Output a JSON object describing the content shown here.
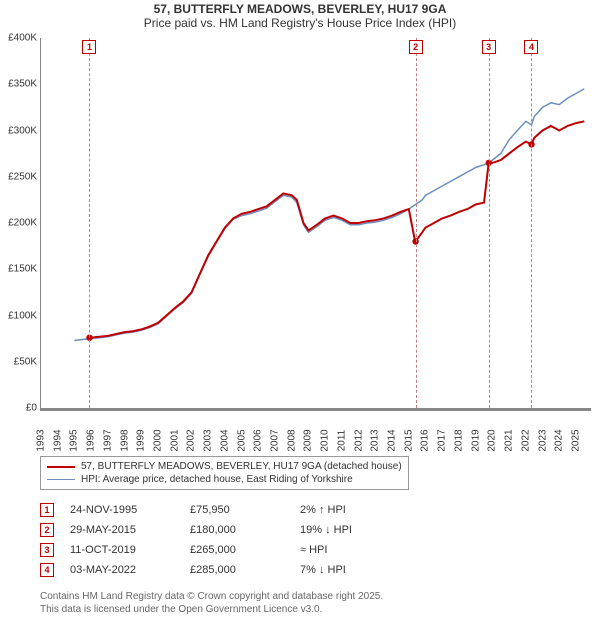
{
  "title": {
    "line1": "57, BUTTERFLY MEADOWS, BEVERLEY, HU17 9GA",
    "line2": "Price paid vs. HM Land Registry's House Price Index (HPI)",
    "fontsize": 12,
    "color": "#333333"
  },
  "chart": {
    "type": "line",
    "background_color": "#ffffff",
    "axis_color": "#888888",
    "x": {
      "min": 1993,
      "max": 2025.9,
      "ticks": [
        1993,
        1994,
        1995,
        1996,
        1997,
        1998,
        1999,
        2000,
        2001,
        2002,
        2003,
        2004,
        2005,
        2006,
        2007,
        2008,
        2009,
        2010,
        2011,
        2012,
        2013,
        2014,
        2015,
        2016,
        2017,
        2018,
        2019,
        2020,
        2021,
        2022,
        2023,
        2024,
        2025
      ],
      "tick_fontsize": 10,
      "tick_rotation": -90
    },
    "y": {
      "min": 0,
      "max": 400000,
      "ticks": [
        0,
        50000,
        100000,
        150000,
        200000,
        250000,
        300000,
        350000,
        400000
      ],
      "tick_labels": [
        "£0",
        "£50K",
        "£100K",
        "£150K",
        "£200K",
        "£250K",
        "£300K",
        "£350K",
        "£400K"
      ],
      "tick_fontsize": 10
    },
    "series": [
      {
        "id": "price_paid",
        "label": "57, BUTTERFLY MEADOWS, BEVERLEY, HU17 9GA (detached house)",
        "color": "#c00000",
        "line_width": 2,
        "data": [
          [
            1995.9,
            75950
          ],
          [
            1996.5,
            77000
          ],
          [
            1997.0,
            78000
          ],
          [
            1997.5,
            80000
          ],
          [
            1998.0,
            82000
          ],
          [
            1998.5,
            83000
          ],
          [
            1999.0,
            85000
          ],
          [
            1999.5,
            88000
          ],
          [
            2000.0,
            92000
          ],
          [
            2000.5,
            100000
          ],
          [
            2001.0,
            108000
          ],
          [
            2001.5,
            115000
          ],
          [
            2002.0,
            125000
          ],
          [
            2002.5,
            145000
          ],
          [
            2003.0,
            165000
          ],
          [
            2003.5,
            180000
          ],
          [
            2004.0,
            195000
          ],
          [
            2004.5,
            205000
          ],
          [
            2005.0,
            210000
          ],
          [
            2005.5,
            212000
          ],
          [
            2006.0,
            215000
          ],
          [
            2006.5,
            218000
          ],
          [
            2007.0,
            225000
          ],
          [
            2007.5,
            232000
          ],
          [
            2008.0,
            230000
          ],
          [
            2008.3,
            225000
          ],
          [
            2008.7,
            200000
          ],
          [
            2009.0,
            192000
          ],
          [
            2009.5,
            198000
          ],
          [
            2010.0,
            205000
          ],
          [
            2010.5,
            208000
          ],
          [
            2011.0,
            205000
          ],
          [
            2011.5,
            200000
          ],
          [
            2012.0,
            200000
          ],
          [
            2012.5,
            202000
          ],
          [
            2013.0,
            203000
          ],
          [
            2013.5,
            205000
          ],
          [
            2014.0,
            208000
          ],
          [
            2014.5,
            212000
          ],
          [
            2015.0,
            215000
          ],
          [
            2015.38,
            180000
          ],
          [
            2015.41,
            180000
          ],
          [
            2015.8,
            190000
          ],
          [
            2016.0,
            195000
          ],
          [
            2016.5,
            200000
          ],
          [
            2017.0,
            205000
          ],
          [
            2017.5,
            208000
          ],
          [
            2018.0,
            212000
          ],
          [
            2018.5,
            215000
          ],
          [
            2019.0,
            220000
          ],
          [
            2019.5,
            222000
          ],
          [
            2019.78,
            265000
          ],
          [
            2020.0,
            265000
          ],
          [
            2020.5,
            268000
          ],
          [
            2021.0,
            275000
          ],
          [
            2021.5,
            282000
          ],
          [
            2022.0,
            288000
          ],
          [
            2022.34,
            285000
          ],
          [
            2022.5,
            292000
          ],
          [
            2023.0,
            300000
          ],
          [
            2023.5,
            305000
          ],
          [
            2024.0,
            300000
          ],
          [
            2024.5,
            305000
          ],
          [
            2025.0,
            308000
          ],
          [
            2025.5,
            310000
          ]
        ]
      },
      {
        "id": "hpi",
        "label": "HPI: Average price, detached house, East Riding of Yorkshire",
        "color": "#6a8fbf",
        "line_width": 1.5,
        "data": [
          [
            1995.0,
            73000
          ],
          [
            1995.9,
            75000
          ],
          [
            1996.5,
            76000
          ],
          [
            1997.0,
            77000
          ],
          [
            1997.5,
            79000
          ],
          [
            1998.0,
            81000
          ],
          [
            1998.5,
            82000
          ],
          [
            1999.0,
            84000
          ],
          [
            1999.5,
            87000
          ],
          [
            2000.0,
            91000
          ],
          [
            2000.5,
            99000
          ],
          [
            2001.0,
            107000
          ],
          [
            2001.5,
            114000
          ],
          [
            2002.0,
            124000
          ],
          [
            2002.5,
            144000
          ],
          [
            2003.0,
            164000
          ],
          [
            2003.5,
            179000
          ],
          [
            2004.0,
            194000
          ],
          [
            2004.5,
            204000
          ],
          [
            2005.0,
            208000
          ],
          [
            2005.5,
            210000
          ],
          [
            2006.0,
            213000
          ],
          [
            2006.5,
            216000
          ],
          [
            2007.0,
            223000
          ],
          [
            2007.5,
            230000
          ],
          [
            2008.0,
            228000
          ],
          [
            2008.3,
            222000
          ],
          [
            2008.7,
            198000
          ],
          [
            2009.0,
            190000
          ],
          [
            2009.5,
            196000
          ],
          [
            2010.0,
            203000
          ],
          [
            2010.5,
            206000
          ],
          [
            2011.0,
            203000
          ],
          [
            2011.5,
            198000
          ],
          [
            2012.0,
            198000
          ],
          [
            2012.5,
            200000
          ],
          [
            2013.0,
            201000
          ],
          [
            2013.5,
            203000
          ],
          [
            2014.0,
            206000
          ],
          [
            2014.5,
            210000
          ],
          [
            2015.0,
            215000
          ],
          [
            2015.4,
            220000
          ],
          [
            2015.8,
            225000
          ],
          [
            2016.0,
            230000
          ],
          [
            2016.5,
            235000
          ],
          [
            2017.0,
            240000
          ],
          [
            2017.5,
            245000
          ],
          [
            2018.0,
            250000
          ],
          [
            2018.5,
            255000
          ],
          [
            2019.0,
            260000
          ],
          [
            2019.5,
            263000
          ],
          [
            2019.78,
            265000
          ],
          [
            2020.0,
            268000
          ],
          [
            2020.5,
            275000
          ],
          [
            2021.0,
            290000
          ],
          [
            2021.5,
            300000
          ],
          [
            2022.0,
            310000
          ],
          [
            2022.34,
            306000
          ],
          [
            2022.5,
            315000
          ],
          [
            2023.0,
            325000
          ],
          [
            2023.5,
            330000
          ],
          [
            2024.0,
            328000
          ],
          [
            2024.5,
            335000
          ],
          [
            2025.0,
            340000
          ],
          [
            2025.5,
            345000
          ]
        ]
      }
    ],
    "transaction_markers": [
      {
        "n": "1",
        "x": 1995.9,
        "y": 75950
      },
      {
        "n": "2",
        "x": 2015.41,
        "y": 180000
      },
      {
        "n": "3",
        "x": 2019.78,
        "y": 265000
      },
      {
        "n": "4",
        "x": 2022.34,
        "y": 285000
      }
    ],
    "marker_box_color": "#c00000",
    "marker_dot_color": "#c00000",
    "marker_line_color": "#c08080"
  },
  "legend": {
    "border_color": "#999999",
    "fontsize": 10,
    "items": [
      {
        "color": "#c00000",
        "text": "57, BUTTERFLY MEADOWS, BEVERLEY, HU17 9GA (detached house)",
        "width": 2
      },
      {
        "color": "#6a8fbf",
        "text": "HPI: Average price, detached house, East Riding of Yorkshire",
        "width": 1.5
      }
    ]
  },
  "transactions": [
    {
      "n": "1",
      "date": "24-NOV-1995",
      "price": "£75,950",
      "delta": "2% ↑ HPI"
    },
    {
      "n": "2",
      "date": "29-MAY-2015",
      "price": "£180,000",
      "delta": "19% ↓ HPI"
    },
    {
      "n": "3",
      "date": "11-OCT-2019",
      "price": "£265,000",
      "delta": "≈ HPI"
    },
    {
      "n": "4",
      "date": "03-MAY-2022",
      "price": "£285,000",
      "delta": "7% ↓ HPI"
    }
  ],
  "footer": {
    "line1": "Contains HM Land Registry data © Crown copyright and database right 2025.",
    "line2": "This data is licensed under the Open Government Licence v3.0.",
    "color": "#666666",
    "fontsize": 10
  }
}
